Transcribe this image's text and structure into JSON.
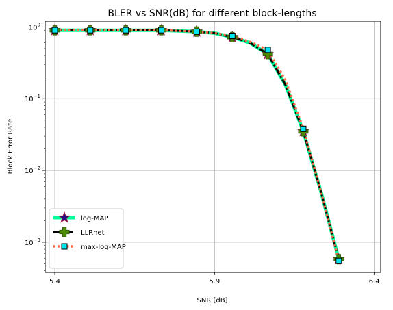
{
  "chart_data": {
    "type": "line",
    "title": "BLER vs SNR(dB) for different block-lengths",
    "xlabel": "SNR [dB]",
    "ylabel": "Block Error Rate",
    "xlim": [
      5.37,
      6.42
    ],
    "ylim_log10": [
      -3.42,
      0.08
    ],
    "yscale": "log",
    "grid": true,
    "legend_position": "lower-left",
    "x_ticks": [
      5.4,
      5.9,
      6.4
    ],
    "x_tick_labels": [
      "5.4",
      "5.9",
      "6.4"
    ],
    "y_ticks": [
      0.001,
      0.01,
      0.1,
      1
    ],
    "y_tick_labels": [
      {
        "base": "10",
        "exp": "−3"
      },
      {
        "base": "10",
        "exp": "−2"
      },
      {
        "base": "10",
        "exp": "−1"
      },
      {
        "base": "10",
        "exp": "0"
      }
    ],
    "x": [
      5.4,
      5.4556,
      5.5111,
      5.5667,
      5.6222,
      5.6778,
      5.7333,
      5.7889,
      5.8444,
      5.9,
      5.9556,
      6.0111,
      6.0667,
      6.1222,
      6.1778,
      6.2333,
      6.2889,
      6.3444,
      6.4
    ],
    "series": [
      {
        "name": "log-MAP",
        "color": "#00ff99",
        "marker": "star",
        "marker_fill": "#2e0a80",
        "marker_edge": "#9e1b3c",
        "values": [
          0.9,
          0.9,
          0.9,
          0.9,
          0.9,
          0.9,
          0.9,
          0.88,
          0.86,
          0.82,
          0.72,
          0.6,
          0.42,
          0.155,
          0.035,
          0.005,
          0.00058,
          null,
          null
        ]
      },
      {
        "name": "LLRnet",
        "color": "#000000",
        "marker": "plus",
        "marker_fill": "#4c8a00",
        "marker_edge": "#3a5a1a",
        "values": [
          0.9,
          0.9,
          0.9,
          0.9,
          0.9,
          0.9,
          0.9,
          0.88,
          0.86,
          0.82,
          0.72,
          0.6,
          0.42,
          0.155,
          0.035,
          0.005,
          0.00058,
          null,
          null
        ]
      },
      {
        "name": "max-log-MAP",
        "color": "#ff6a4a",
        "marker": "square",
        "marker_fill": "#00e5ee",
        "marker_edge": "#000000",
        "values": [
          0.9,
          0.9,
          0.9,
          0.9,
          0.9,
          0.9,
          0.9,
          0.88,
          0.86,
          0.82,
          0.75,
          0.62,
          0.48,
          0.18,
          0.038,
          0.005,
          0.00055,
          null,
          null
        ]
      }
    ]
  }
}
